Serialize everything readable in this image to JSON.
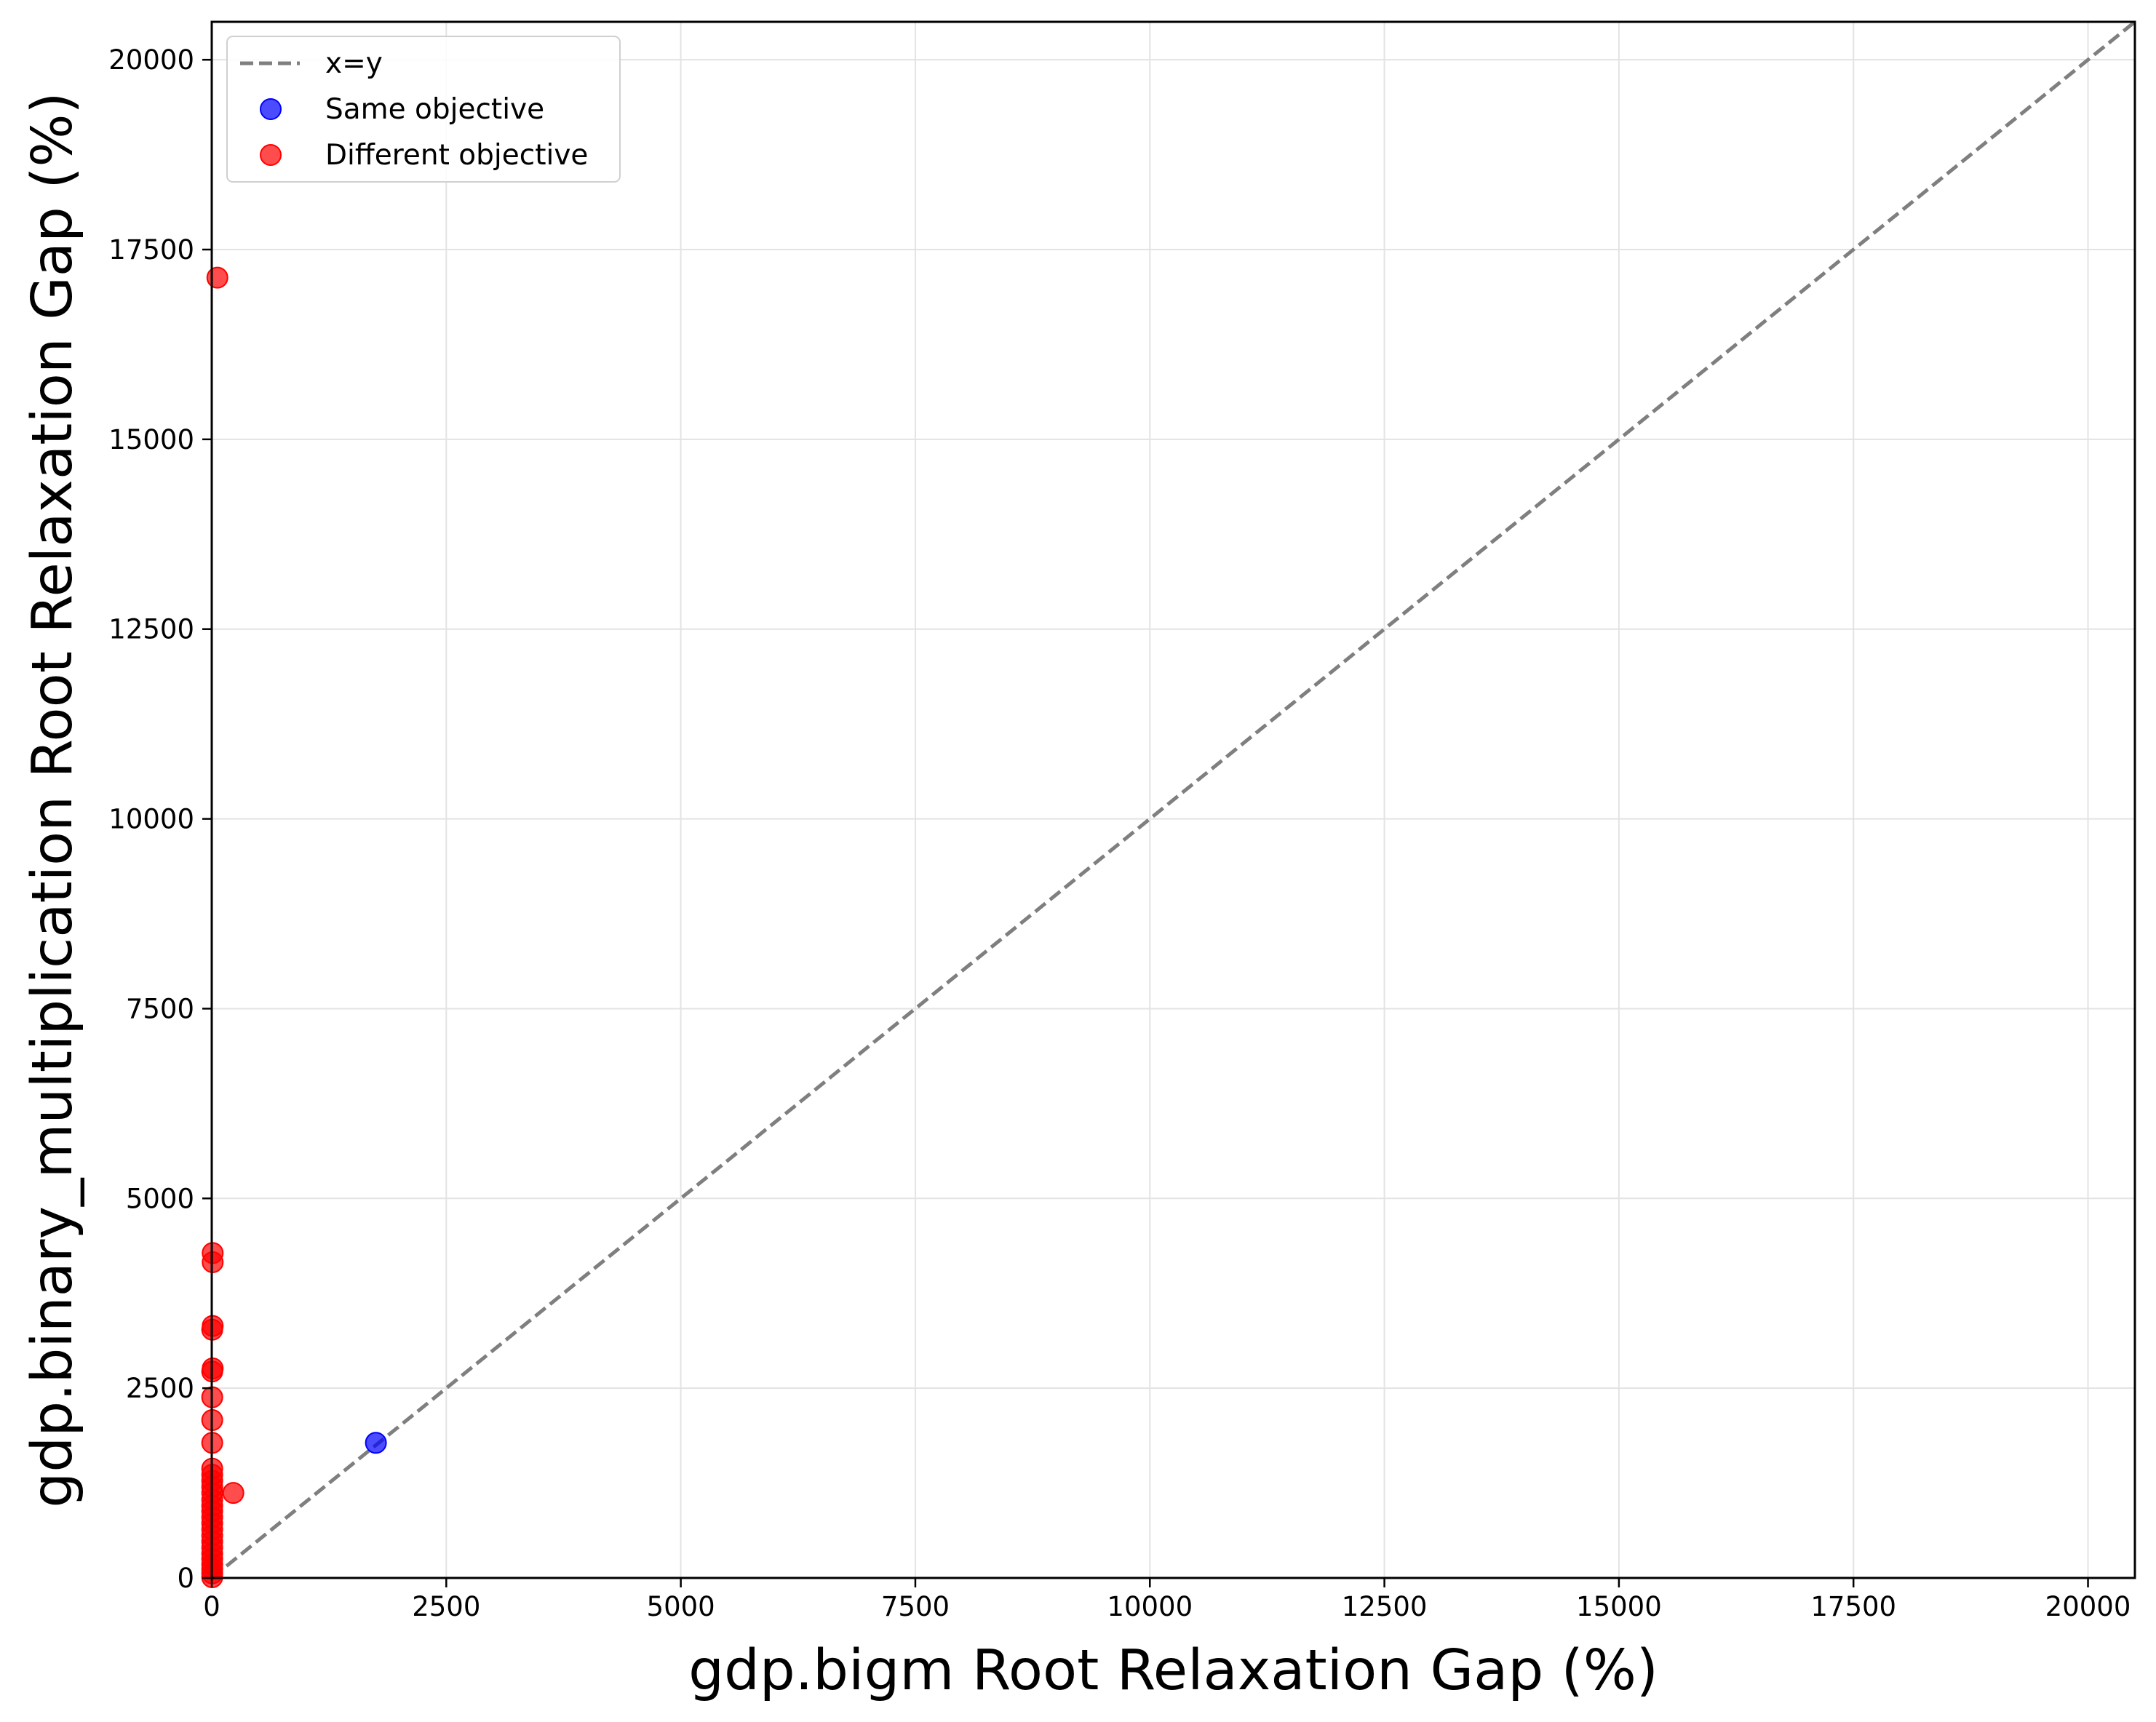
{
  "chart_data": {
    "type": "scatter",
    "title": "",
    "xlabel": "gdp.bigm Root Relaxation Gap (%)",
    "ylabel": "gdp.binary_multiplication Root Relaxation Gap (%)",
    "xlim": [
      0,
      20500
    ],
    "ylim": [
      0,
      20500
    ],
    "xticks": [
      0,
      2500,
      5000,
      7500,
      10000,
      12500,
      15000,
      17500,
      20000
    ],
    "yticks": [
      0,
      2500,
      5000,
      7500,
      10000,
      12500,
      15000,
      17500,
      20000
    ],
    "grid": true,
    "legend_position": "top-left",
    "reference_line": {
      "name": "x=y",
      "color": "#7f7f7f",
      "style": "dashed"
    },
    "series": [
      {
        "name": "Same objective",
        "color": "#0000ff",
        "points": [
          [
            1750,
            1780
          ]
        ]
      },
      {
        "name": "Different objective",
        "color": "#ff0000",
        "points": [
          [
            60,
            17130
          ],
          [
            10,
            4280
          ],
          [
            10,
            4160
          ],
          [
            10,
            3320
          ],
          [
            5,
            3270
          ],
          [
            10,
            2760
          ],
          [
            5,
            2720
          ],
          [
            5,
            2380
          ],
          [
            5,
            2080
          ],
          [
            5,
            1780
          ],
          [
            5,
            1440
          ],
          [
            5,
            1360
          ],
          [
            5,
            1280
          ],
          [
            5,
            1200
          ],
          [
            5,
            1120
          ],
          [
            230,
            1120
          ],
          [
            5,
            1030
          ],
          [
            5,
            950
          ],
          [
            5,
            880
          ],
          [
            5,
            800
          ],
          [
            5,
            720
          ],
          [
            5,
            640
          ],
          [
            5,
            560
          ],
          [
            5,
            480
          ],
          [
            5,
            400
          ],
          [
            5,
            320
          ],
          [
            5,
            250
          ],
          [
            5,
            180
          ],
          [
            5,
            120
          ],
          [
            5,
            60
          ],
          [
            5,
            10
          ]
        ]
      }
    ]
  }
}
